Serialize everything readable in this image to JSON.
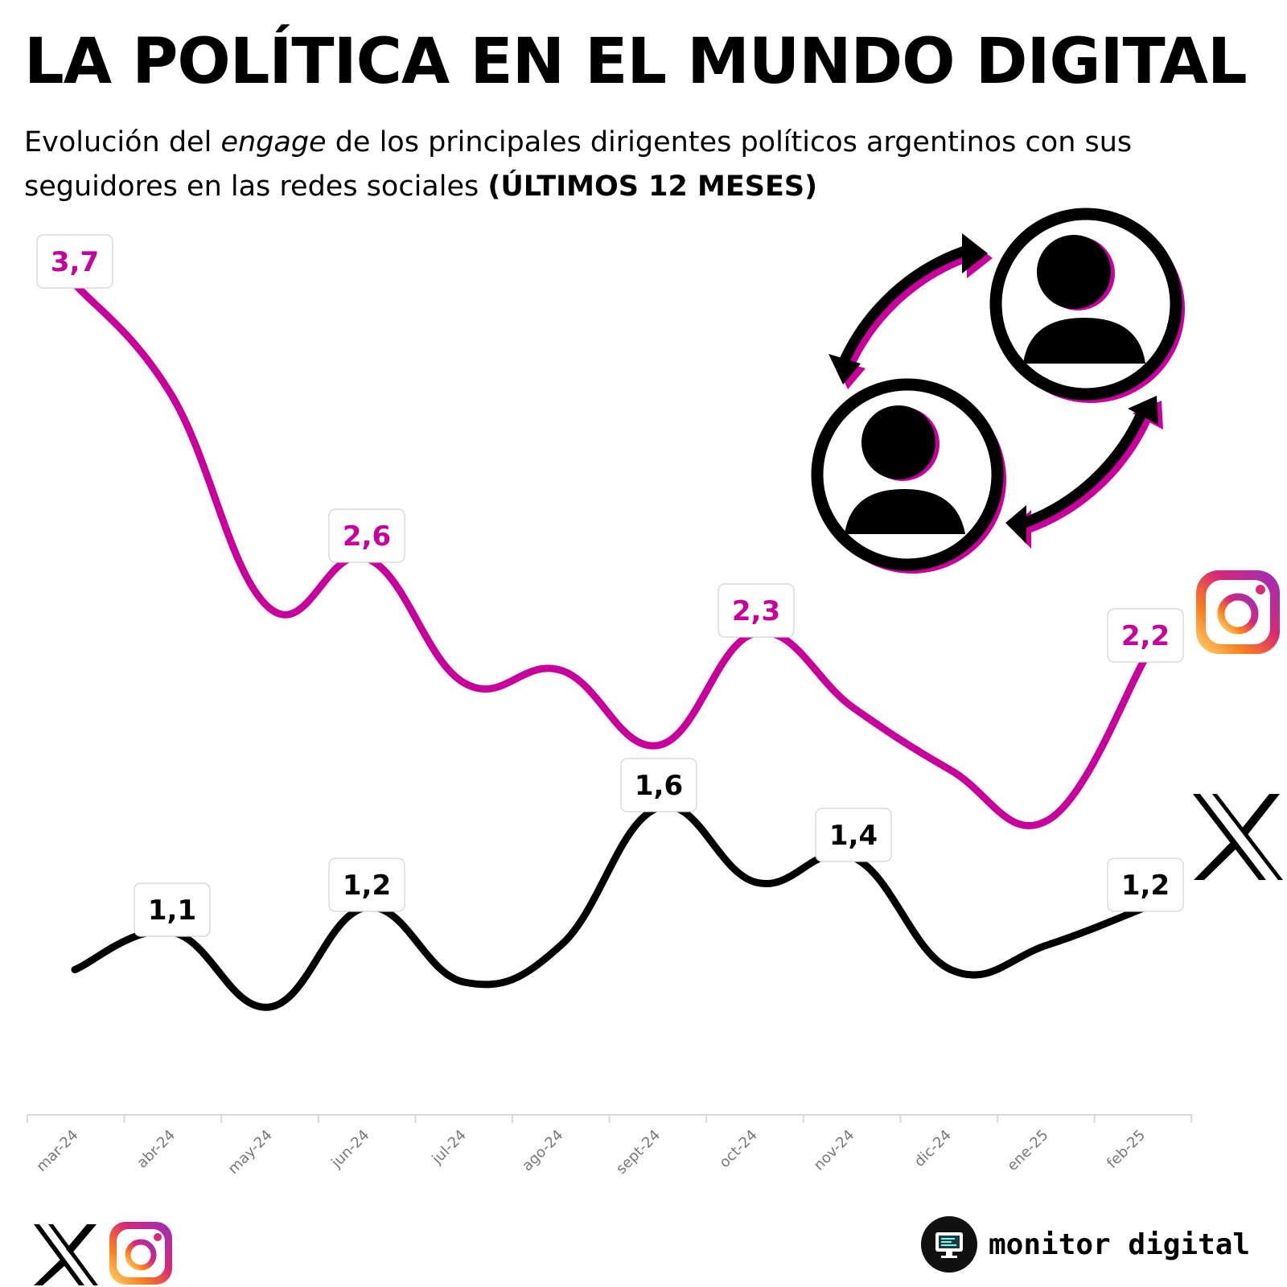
{
  "header": {
    "title": "LA POLÍTICA EN EL MUNDO DIGITAL",
    "subtitle_part1": "Evolución del ",
    "subtitle_emphasis": "engage",
    "subtitle_part2": " de los principales dirigentes políticos argentinos con sus seguidores en las redes sociales ",
    "subtitle_bold": "(ÚLTIMOS 12 MESES)"
  },
  "chart_data": {
    "type": "line",
    "title": "LA POLÍTICA EN EL MUNDO DIGITAL",
    "categories": [
      "mar-24",
      "abr-24",
      "may-24",
      "jun-24",
      "jul-24",
      "ago-24",
      "sept-24",
      "oct-24",
      "nov-24",
      "dic-24",
      "ene-25",
      "feb-25"
    ],
    "series": [
      {
        "icon": "instagram-icon",
        "color": "#c8009b",
        "values": [
          3.7,
          3.25,
          2.4,
          2.6,
          2.1,
          2.15,
          1.85,
          2.3,
          2.0,
          1.75,
          1.55,
          2.2
        ],
        "labels": [
          {
            "index": 0,
            "text": "3,7"
          },
          {
            "index": 3,
            "text": "2,6"
          },
          {
            "index": 7,
            "text": "2,3"
          },
          {
            "index": 11,
            "text": "2,2"
          }
        ]
      },
      {
        "icon": "x-icon",
        "color": "#000000",
        "values": [
          0.95,
          1.1,
          0.8,
          1.2,
          0.9,
          1.05,
          1.6,
          1.3,
          1.4,
          0.95,
          1.05,
          1.2
        ],
        "labels": [
          {
            "index": 1,
            "text": "1,1"
          },
          {
            "index": 3,
            "text": "1,2"
          },
          {
            "index": 6,
            "text": "1,6"
          },
          {
            "index": 8,
            "text": "1,4"
          },
          {
            "index": 11,
            "text": "1,2"
          }
        ]
      }
    ],
    "ylim": [
      0,
      4
    ],
    "grid": false,
    "legend": "icons at line ends"
  },
  "footer": {
    "brand": "monitor digital",
    "social_icons": [
      "x-icon",
      "instagram-icon"
    ],
    "brand_icon": "monitor-icon"
  }
}
